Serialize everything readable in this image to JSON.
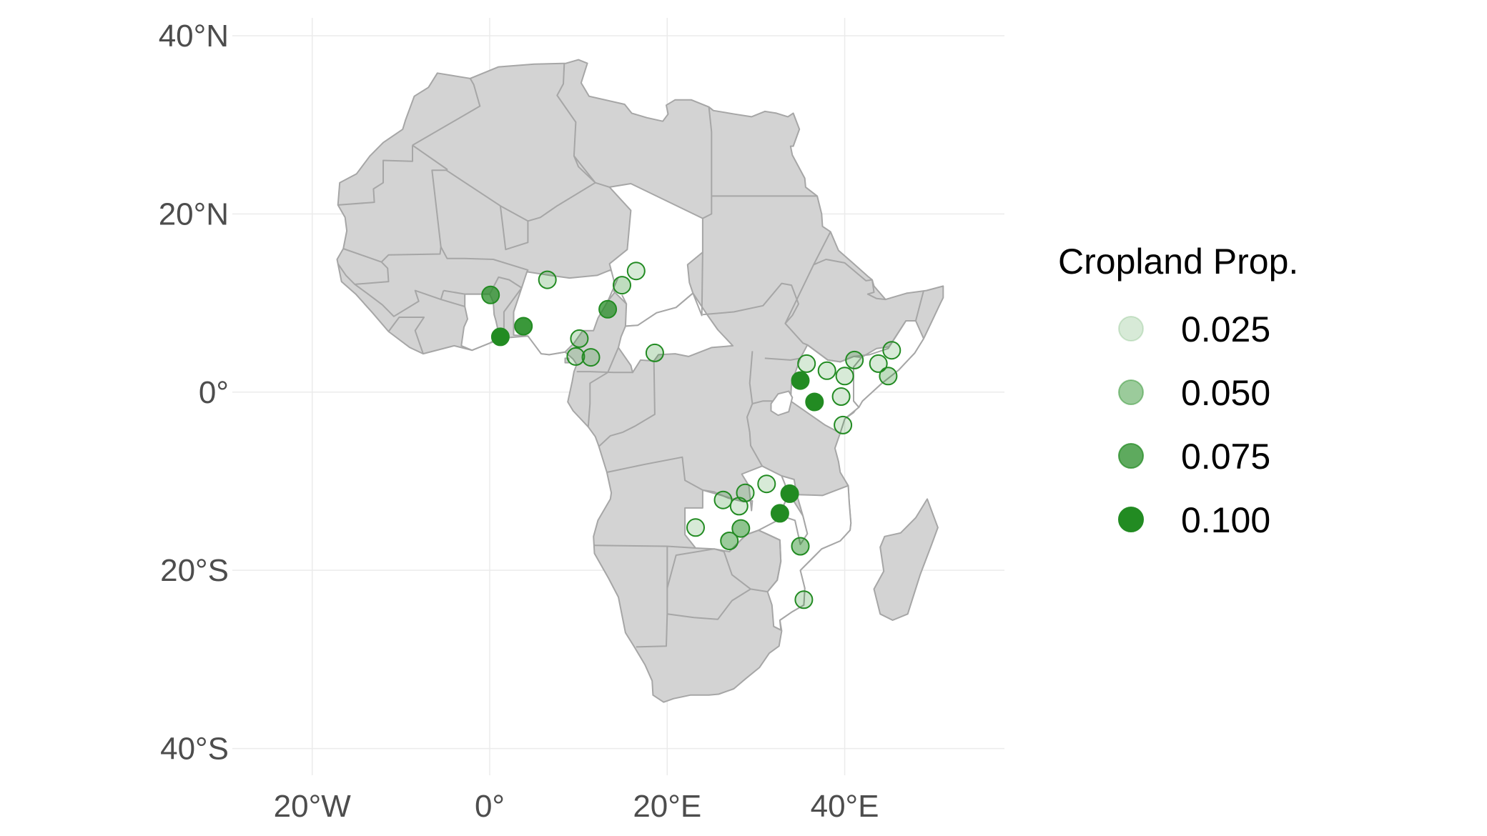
{
  "axes": {
    "lat_ticks": [
      {
        "value": 40,
        "label": "40°N"
      },
      {
        "value": 20,
        "label": "20°N"
      },
      {
        "value": 0,
        "label": "0°"
      },
      {
        "value": -20,
        "label": "20°S"
      },
      {
        "value": -40,
        "label": "40°S"
      }
    ],
    "lon_ticks": [
      {
        "value": -20,
        "label": "20°W"
      },
      {
        "value": 0,
        "label": "0°"
      },
      {
        "value": 20,
        "label": "20°E"
      },
      {
        "value": 40,
        "label": "40°E"
      }
    ],
    "xlim": [
      -29,
      58
    ],
    "ylim": [
      -43,
      42
    ]
  },
  "legend": {
    "title": "Cropland Prop.",
    "items": [
      {
        "label": "0.025",
        "value": 0.025
      },
      {
        "label": "0.050",
        "value": 0.05
      },
      {
        "label": "0.075",
        "value": 0.075
      },
      {
        "label": "0.100",
        "value": 0.1
      }
    ]
  },
  "colors": {
    "point": "#228B22",
    "land": "#d3d3d3",
    "study_countries": "#ffffff",
    "borders": "#a6a6a6",
    "grid": "#ebebeb"
  },
  "points": [
    {
      "lon": 0.1,
      "lat": 10.9,
      "prop": 0.075
    },
    {
      "lon": 1.2,
      "lat": 6.2,
      "prop": 0.1
    },
    {
      "lon": 3.8,
      "lat": 7.4,
      "prop": 0.09
    },
    {
      "lon": 6.5,
      "lat": 12.6,
      "prop": 0.03
    },
    {
      "lon": 10.1,
      "lat": 6.0,
      "prop": 0.03
    },
    {
      "lon": 9.7,
      "lat": 4.0,
      "prop": 0.02
    },
    {
      "lon": 11.4,
      "lat": 3.9,
      "prop": 0.03
    },
    {
      "lon": 13.3,
      "lat": 9.3,
      "prop": 0.075
    },
    {
      "lon": 14.9,
      "lat": 12.0,
      "prop": 0.035
    },
    {
      "lon": 16.5,
      "lat": 13.6,
      "prop": 0.025
    },
    {
      "lon": 18.6,
      "lat": 4.4,
      "prop": 0.03
    },
    {
      "lon": 35.0,
      "lat": 1.3,
      "prop": 0.1
    },
    {
      "lon": 35.7,
      "lat": 3.2,
      "prop": 0.025
    },
    {
      "lon": 36.6,
      "lat": -1.1,
      "prop": 0.1
    },
    {
      "lon": 38.0,
      "lat": 2.4,
      "prop": 0.02
    },
    {
      "lon": 39.6,
      "lat": -0.5,
      "prop": 0.02
    },
    {
      "lon": 40.0,
      "lat": 1.8,
      "prop": 0.025
    },
    {
      "lon": 41.1,
      "lat": 3.6,
      "prop": 0.03
    },
    {
      "lon": 43.8,
      "lat": 3.2,
      "prop": 0.025
    },
    {
      "lon": 44.9,
      "lat": 1.8,
      "prop": 0.035
    },
    {
      "lon": 45.3,
      "lat": 4.7,
      "prop": 0.025
    },
    {
      "lon": 39.8,
      "lat": -3.7,
      "prop": 0.025
    },
    {
      "lon": 31.2,
      "lat": -10.3,
      "prop": 0.025
    },
    {
      "lon": 33.8,
      "lat": -11.4,
      "prop": 0.1
    },
    {
      "lon": 28.8,
      "lat": -11.3,
      "prop": 0.025
    },
    {
      "lon": 26.3,
      "lat": -12.1,
      "prop": 0.03
    },
    {
      "lon": 28.1,
      "lat": -12.8,
      "prop": 0.025
    },
    {
      "lon": 32.7,
      "lat": -13.6,
      "prop": 0.1
    },
    {
      "lon": 23.2,
      "lat": -15.2,
      "prop": 0.025
    },
    {
      "lon": 28.3,
      "lat": -15.3,
      "prop": 0.055
    },
    {
      "lon": 27.0,
      "lat": -16.7,
      "prop": 0.05
    },
    {
      "lon": 35.0,
      "lat": -17.3,
      "prop": 0.05
    },
    {
      "lon": 35.4,
      "lat": -23.3,
      "prop": 0.03
    }
  ]
}
